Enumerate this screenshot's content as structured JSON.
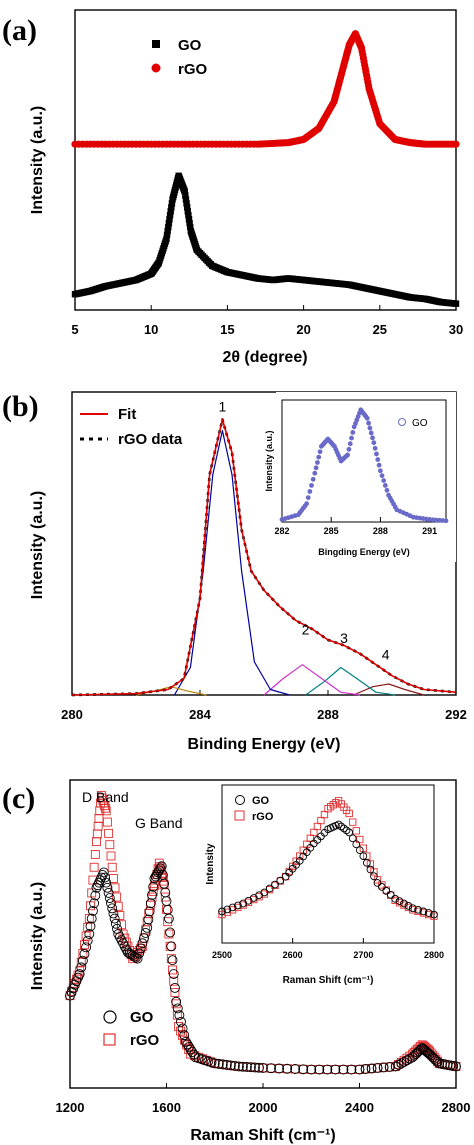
{
  "chart_data": [
    {
      "panel": "(a)",
      "type": "scatter",
      "xlabel": "2θ (degree)",
      "ylabel": "Intensity (a.u.)",
      "xlim": [
        5,
        30
      ],
      "xticks": [
        "5",
        "10",
        "15",
        "20",
        "25",
        "30"
      ],
      "legend_position": "top-left",
      "series": [
        {
          "name": "GO",
          "color": "#000000",
          "marker": "square",
          "x": [
            5,
            6,
            7,
            8,
            9,
            10,
            10.5,
            11,
            11.4,
            11.8,
            12.2,
            12.6,
            13,
            14,
            15,
            16,
            17,
            18,
            19,
            20,
            21,
            22,
            23,
            24,
            25,
            26,
            27,
            28,
            29,
            30
          ],
          "y": [
            0.1,
            0.12,
            0.15,
            0.17,
            0.19,
            0.23,
            0.3,
            0.45,
            0.7,
            0.85,
            0.75,
            0.5,
            0.38,
            0.28,
            0.24,
            0.22,
            0.2,
            0.19,
            0.2,
            0.19,
            0.18,
            0.17,
            0.16,
            0.14,
            0.12,
            0.1,
            0.08,
            0.07,
            0.05,
            0.04
          ]
        },
        {
          "name": "rGO",
          "color": "#e00000",
          "marker": "circle",
          "x": [
            5,
            8,
            11,
            14,
            17,
            19,
            20,
            21,
            22,
            22.5,
            23,
            23.4,
            23.8,
            24.3,
            25,
            26,
            27,
            28,
            30
          ],
          "y": [
            1.05,
            1.05,
            1.05,
            1.05,
            1.05,
            1.06,
            1.08,
            1.15,
            1.32,
            1.5,
            1.68,
            1.75,
            1.66,
            1.4,
            1.18,
            1.08,
            1.06,
            1.05,
            1.05
          ]
        }
      ]
    },
    {
      "panel": "(b)",
      "type": "line",
      "xlabel": "Binding Energy (eV)",
      "ylabel": "Intensity (a.u.)",
      "xlim": [
        280,
        292
      ],
      "xticks": [
        "280",
        "284",
        "288",
        "292"
      ],
      "legend_position": "top-left",
      "legend": [
        "Fit",
        "rGO data"
      ],
      "peak_labels": [
        {
          "text": "1",
          "x": 284.7,
          "y": 1.0
        },
        {
          "text": "2",
          "x": 287.3,
          "y": 0.19
        },
        {
          "text": "3",
          "x": 288.5,
          "y": 0.16
        },
        {
          "text": "4",
          "x": 289.8,
          "y": 0.1
        }
      ],
      "series": [
        {
          "name": "Fit",
          "color": "#e00000",
          "x": [
            280,
            282,
            283,
            283.5,
            284,
            284.3,
            284.7,
            285,
            285.3,
            285.6,
            286,
            286.5,
            287,
            287.5,
            288,
            288.5,
            289,
            289.5,
            290,
            290.5,
            291,
            292
          ],
          "y": [
            0.0,
            0.005,
            0.02,
            0.06,
            0.35,
            0.8,
            1.0,
            0.88,
            0.6,
            0.45,
            0.38,
            0.32,
            0.27,
            0.24,
            0.2,
            0.18,
            0.15,
            0.11,
            0.07,
            0.04,
            0.02,
            0.01
          ]
        },
        {
          "name": "rGO data",
          "color": "#000000",
          "x": [
            280,
            282,
            283,
            283.5,
            284,
            284.3,
            284.7,
            285,
            285.3,
            285.6,
            286,
            286.5,
            287,
            287.5,
            288,
            288.5,
            289,
            289.5,
            290,
            290.5,
            291,
            292
          ],
          "y": [
            0.0,
            0.005,
            0.02,
            0.06,
            0.35,
            0.8,
            1.0,
            0.88,
            0.6,
            0.45,
            0.38,
            0.32,
            0.27,
            0.24,
            0.2,
            0.18,
            0.15,
            0.11,
            0.07,
            0.04,
            0.02,
            0.01
          ]
        },
        {
          "color": "#b8860b",
          "x": [
            282,
            282.6,
            283.1,
            283.6,
            284.2
          ],
          "y": [
            0,
            0.015,
            0.03,
            0.015,
            0
          ]
        },
        {
          "color": "#0000a0",
          "x": [
            283.2,
            283.7,
            284.1,
            284.4,
            284.7,
            285.0,
            285.3,
            285.7,
            286.2,
            286.8
          ],
          "y": [
            0,
            0.1,
            0.45,
            0.8,
            0.96,
            0.8,
            0.45,
            0.12,
            0.02,
            0
          ]
        },
        {
          "color": "#cc33cc",
          "x": [
            286.0,
            286.6,
            287.2,
            287.8,
            288.4,
            289.0
          ],
          "y": [
            0,
            0.06,
            0.11,
            0.06,
            0.01,
            0
          ]
        },
        {
          "color": "#008080",
          "x": [
            287.3,
            287.9,
            288.4,
            288.9,
            289.5,
            290.1
          ],
          "y": [
            0,
            0.05,
            0.1,
            0.06,
            0.01,
            0
          ]
        },
        {
          "color": "#8b1a1a",
          "x": [
            288.8,
            289.4,
            289.9,
            290.4,
            291.0
          ],
          "y": [
            0,
            0.03,
            0.04,
            0.02,
            0
          ]
        }
      ],
      "inset": {
        "xlabel": "Bingding Energy (eV)",
        "ylabel": "Intensity (a.u.)",
        "xlim": [
          282,
          292
        ],
        "xticks": [
          "282",
          "285",
          "288",
          "291"
        ],
        "series": [
          {
            "name": "GO",
            "color": "#6a6ac8",
            "marker": "circle",
            "x": [
              282,
              283,
              283.5,
              284,
              284.4,
              284.8,
              285.2,
              285.6,
              286,
              286.4,
              286.8,
              287.2,
              287.6,
              288,
              288.5,
              289,
              290,
              291,
              292
            ],
            "y": [
              0.02,
              0.06,
              0.15,
              0.4,
              0.62,
              0.68,
              0.62,
              0.5,
              0.55,
              0.78,
              0.92,
              0.85,
              0.65,
              0.42,
              0.22,
              0.1,
              0.04,
              0.02,
              0.01
            ]
          }
        ]
      }
    },
    {
      "panel": "(c)",
      "type": "scatter",
      "xlabel": "Raman Shift (cm⁻¹)",
      "ylabel": "Intensity (a.u.)",
      "xlim": [
        1200,
        2800
      ],
      "xticks": [
        "1200",
        "1600",
        "2000",
        "2400",
        "2800"
      ],
      "legend_position": "bottom-left",
      "annotations": [
        "D Band",
        "G Band"
      ],
      "series": [
        {
          "name": "GO",
          "color": "#000000",
          "marker": "open-circle",
          "x": [
            1200,
            1240,
            1280,
            1310,
            1340,
            1370,
            1400,
            1440,
            1480,
            1520,
            1550,
            1580,
            1610,
            1640,
            1680,
            1720,
            1800,
            1900,
            2000,
            2200,
            2400,
            2550,
            2620,
            2660,
            2690,
            2730,
            2800
          ],
          "y": [
            0.3,
            0.37,
            0.5,
            0.65,
            0.7,
            0.6,
            0.5,
            0.44,
            0.42,
            0.52,
            0.68,
            0.72,
            0.55,
            0.28,
            0.15,
            0.1,
            0.08,
            0.07,
            0.065,
            0.06,
            0.06,
            0.07,
            0.1,
            0.13,
            0.11,
            0.08,
            0.07
          ]
        },
        {
          "name": "rGO",
          "color": "#e03030",
          "marker": "open-square",
          "x": [
            1200,
            1240,
            1280,
            1310,
            1330,
            1350,
            1380,
            1420,
            1460,
            1500,
            1540,
            1570,
            1590,
            1620,
            1650,
            1700,
            1800,
            1900,
            2000,
            2200,
            2400,
            2550,
            2620,
            2660,
            2690,
            2730,
            2800
          ],
          "y": [
            0.3,
            0.38,
            0.55,
            0.8,
            0.95,
            0.9,
            0.68,
            0.5,
            0.42,
            0.46,
            0.62,
            0.73,
            0.66,
            0.42,
            0.2,
            0.11,
            0.08,
            0.07,
            0.065,
            0.06,
            0.06,
            0.07,
            0.11,
            0.14,
            0.12,
            0.08,
            0.07
          ]
        }
      ],
      "inset": {
        "xlabel": "Raman Shift (cm⁻¹)",
        "ylabel": "Intensity",
        "xlim": [
          2500,
          2800
        ],
        "xticks": [
          "2500",
          "2600",
          "2700",
          "2800"
        ],
        "series": [
          {
            "name": "GO",
            "color": "#000000",
            "marker": "open-circle",
            "x": [
              2500,
              2530,
              2560,
              2590,
              2610,
              2630,
              2650,
              2665,
              2680,
              2700,
              2720,
              2745,
              2770,
              2800
            ],
            "y": [
              0.2,
              0.25,
              0.32,
              0.42,
              0.52,
              0.63,
              0.72,
              0.75,
              0.7,
              0.55,
              0.38,
              0.28,
              0.22,
              0.18
            ]
          },
          {
            "name": "rGO",
            "color": "#e03030",
            "marker": "open-square",
            "x": [
              2500,
              2530,
              2560,
              2590,
              2610,
              2630,
              2650,
              2665,
              2680,
              2700,
              2720,
              2745,
              2770,
              2800
            ],
            "y": [
              0.18,
              0.24,
              0.31,
              0.42,
              0.55,
              0.7,
              0.85,
              0.9,
              0.82,
              0.6,
              0.4,
              0.27,
              0.21,
              0.17
            ]
          }
        ]
      }
    }
  ]
}
